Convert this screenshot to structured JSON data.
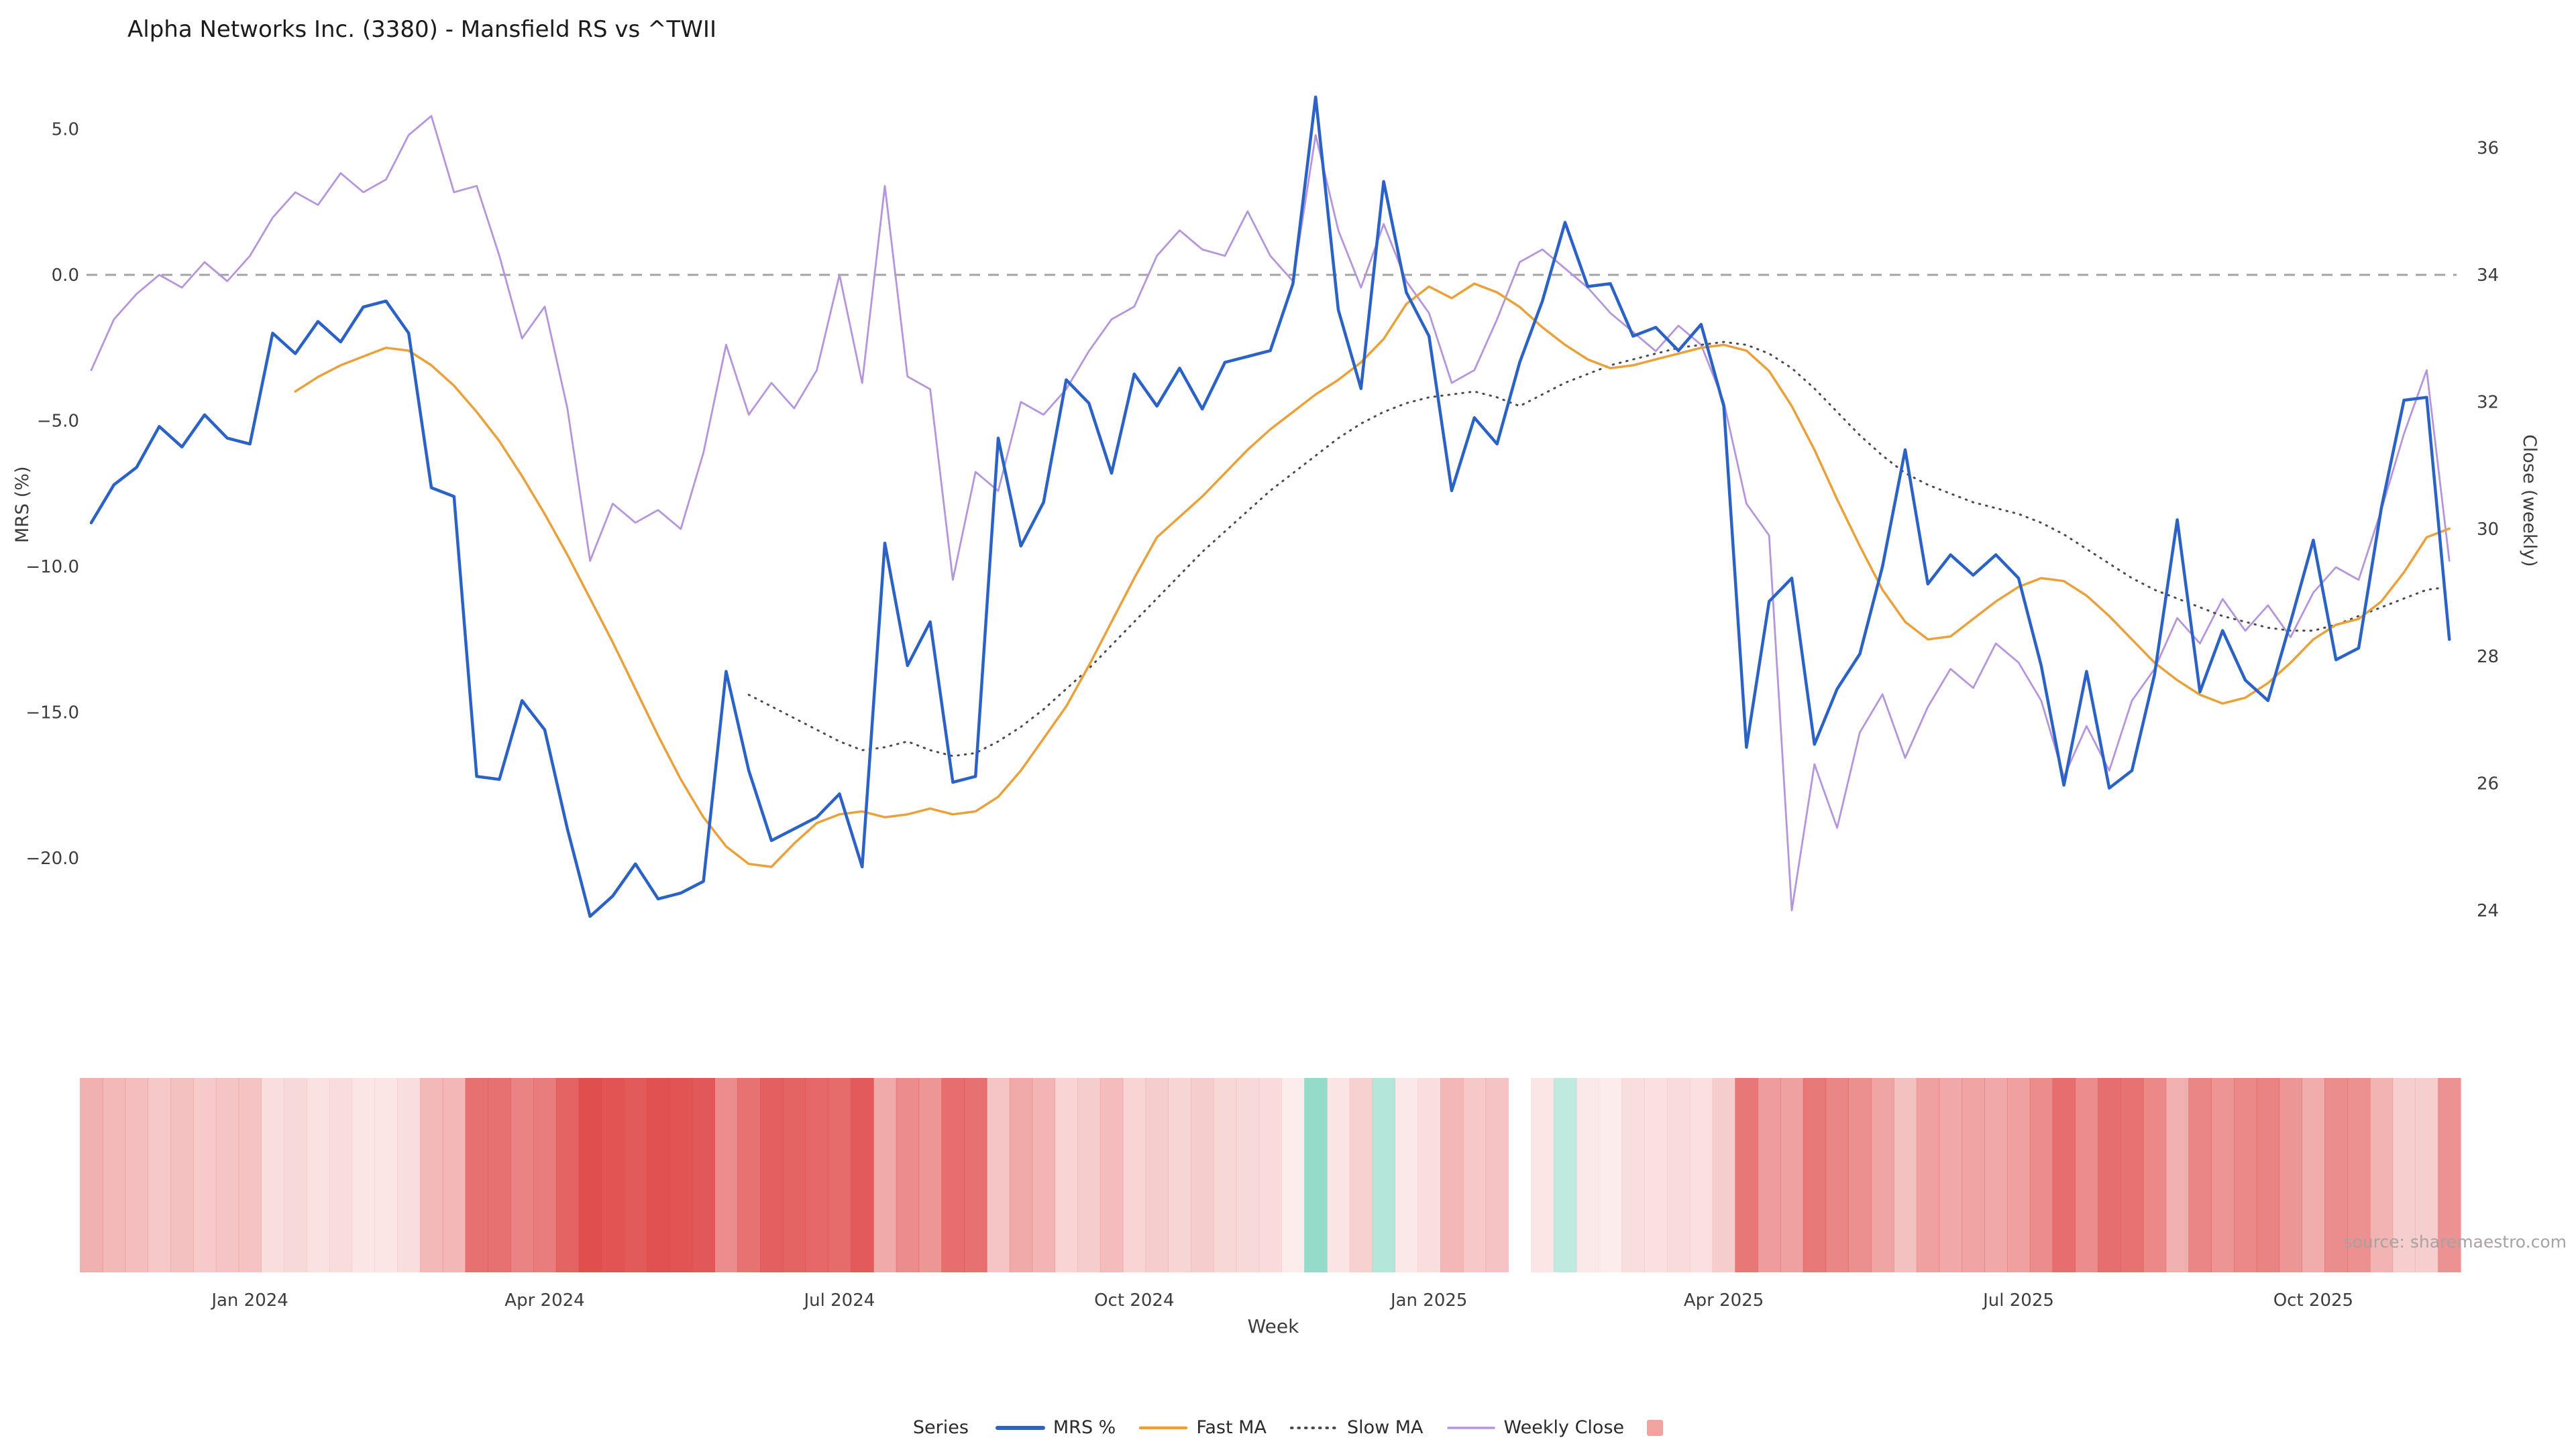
{
  "title": "Alpha Networks Inc. (3380) - Mansfield RS vs ^TWII",
  "source_note": "source: sharemaestro.com",
  "axes": {
    "left": {
      "label": "MRS (%)",
      "ticks": [
        {
          "value": 5.0,
          "label": "5.0"
        },
        {
          "value": 0.0,
          "label": "0.0"
        },
        {
          "value": -5.0,
          "label": "−5.0"
        },
        {
          "value": -10.0,
          "label": "−10.0"
        },
        {
          "value": -15.0,
          "label": "−15.0"
        },
        {
          "value": -20.0,
          "label": "−20.0"
        }
      ]
    },
    "right": {
      "label": "Close (weekly)",
      "ticks": [
        {
          "value": 36,
          "label": "36"
        },
        {
          "value": 34,
          "label": "34"
        },
        {
          "value": 32,
          "label": "32"
        },
        {
          "value": 30,
          "label": "30"
        },
        {
          "value": 28,
          "label": "28"
        },
        {
          "value": 26,
          "label": "26"
        },
        {
          "value": 24,
          "label": "24"
        }
      ]
    },
    "x": {
      "label": "Week",
      "ticks": [
        {
          "index": 7,
          "label": "Jan 2024"
        },
        {
          "index": 20,
          "label": "Apr 2024"
        },
        {
          "index": 33,
          "label": "Jul 2024"
        },
        {
          "index": 46,
          "label": "Oct 2024"
        },
        {
          "index": 59,
          "label": "Jan 2025"
        },
        {
          "index": 72,
          "label": "Apr 2025"
        },
        {
          "index": 85,
          "label": "Jul 2025"
        },
        {
          "index": 98,
          "label": "Oct 2025"
        }
      ]
    }
  },
  "legend": {
    "title": "Series",
    "items": [
      {
        "label": "MRS %",
        "swatch": "line",
        "color": "#2b62c6",
        "width": 6
      },
      {
        "label": "Fast MA",
        "swatch": "line",
        "color": "#e9a13b",
        "width": 4.5
      },
      {
        "label": "Slow MA",
        "swatch": "dotted-line",
        "color": "#4a4a4a",
        "width": 4
      },
      {
        "label": "Weekly Close",
        "swatch": "line",
        "color": "#b596dc",
        "width": 3.5
      },
      {
        "label": "",
        "swatch": "square",
        "color": "#f1a3a0"
      }
    ]
  },
  "chart_data": {
    "type": "line",
    "x_unit": "week_index",
    "n_points": 105,
    "grid": false,
    "ylim_left": [
      -23.5,
      7.0
    ],
    "ylim_right": [
      23.2,
      37.2
    ],
    "zero_line": {
      "axis": "left",
      "value": 0,
      "style": "dashed",
      "color": "#a3a3a3"
    },
    "series": [
      {
        "name": "MRS %",
        "axis": "left",
        "color": "#2b62c6",
        "style": "solid",
        "width": 4.5,
        "values": [
          -8.5,
          -7.2,
          -6.6,
          -5.2,
          -5.9,
          -4.8,
          -5.6,
          -5.8,
          -2.0,
          -2.7,
          -1.6,
          -2.3,
          -1.1,
          -0.9,
          -2.0,
          -7.3,
          -7.6,
          -17.2,
          -17.3,
          -14.6,
          -15.6,
          -19.0,
          -22.0,
          -21.3,
          -20.2,
          -21.4,
          -21.2,
          -20.8,
          -13.6,
          -17.0,
          -19.4,
          -19.0,
          -18.6,
          -17.8,
          -20.3,
          -9.2,
          -13.4,
          -11.9,
          -17.4,
          -17.2,
          -5.6,
          -9.3,
          -7.8,
          -3.6,
          -4.4,
          -6.8,
          -3.4,
          -4.5,
          -3.2,
          -4.6,
          -3.0,
          -2.8,
          -2.6,
          -0.3,
          6.1,
          -1.2,
          -3.9,
          3.2,
          -0.6,
          -2.1,
          -7.4,
          -4.9,
          -5.8,
          -3.0,
          -0.9,
          1.8,
          -0.4,
          -0.3,
          -2.1,
          -1.8,
          -2.6,
          -1.7,
          -4.5,
          -16.2,
          -11.2,
          -10.4,
          -16.1,
          -14.2,
          -13.0,
          -10.0,
          -6.0,
          -10.6,
          -9.6,
          -10.3,
          -9.6,
          -10.4,
          -13.4,
          -17.5,
          -13.6,
          -17.6,
          -17.0,
          -13.7,
          -8.4,
          -14.3,
          -12.2,
          -13.9,
          -14.6,
          -11.9,
          -9.1,
          -13.2,
          -12.8,
          -8.0,
          -4.3,
          -4.2,
          -12.5
        ]
      },
      {
        "name": "Fast MA",
        "axis": "left",
        "color": "#e9a13b",
        "style": "solid",
        "width": 3.5,
        "values": [
          null,
          null,
          null,
          null,
          null,
          null,
          null,
          null,
          null,
          -4.0,
          -3.5,
          -3.1,
          -2.8,
          -2.5,
          -2.6,
          -3.1,
          -3.8,
          -4.7,
          -5.7,
          -6.9,
          -8.2,
          -9.6,
          -11.1,
          -12.6,
          -14.2,
          -15.8,
          -17.3,
          -18.6,
          -19.6,
          -20.2,
          -20.3,
          -19.5,
          -18.8,
          -18.5,
          -18.4,
          -18.6,
          -18.5,
          -18.3,
          -18.5,
          -18.4,
          -17.9,
          -17.0,
          -15.9,
          -14.8,
          -13.4,
          -11.9,
          -10.4,
          -9.0,
          -8.3,
          -7.6,
          -6.8,
          -6.0,
          -5.3,
          -4.7,
          -4.1,
          -3.6,
          -3.0,
          -2.2,
          -1.0,
          -0.4,
          -0.8,
          -0.3,
          -0.6,
          -1.1,
          -1.8,
          -2.4,
          -2.9,
          -3.2,
          -3.1,
          -2.9,
          -2.7,
          -2.5,
          -2.4,
          -2.6,
          -3.3,
          -4.5,
          -6.0,
          -7.7,
          -9.3,
          -10.8,
          -11.9,
          -12.5,
          -12.4,
          -11.8,
          -11.2,
          -10.7,
          -10.4,
          -10.5,
          -11.0,
          -11.7,
          -12.5,
          -13.3,
          -13.9,
          -14.4,
          -14.7,
          -14.5,
          -14.0,
          -13.3,
          -12.5,
          -12.0,
          -11.8,
          -11.2,
          -10.2,
          -9.0,
          -8.7
        ]
      },
      {
        "name": "Slow MA",
        "axis": "left",
        "color": "#4a4a4a",
        "style": "dotted",
        "width": 3,
        "values": [
          null,
          null,
          null,
          null,
          null,
          null,
          null,
          null,
          null,
          null,
          null,
          null,
          null,
          null,
          null,
          null,
          null,
          null,
          null,
          null,
          null,
          null,
          null,
          null,
          null,
          null,
          null,
          null,
          null,
          -14.4,
          -14.8,
          -15.2,
          -15.6,
          -16.0,
          -16.3,
          -16.2,
          -16.0,
          -16.3,
          -16.5,
          -16.4,
          -16.0,
          -15.5,
          -14.9,
          -14.2,
          -13.5,
          -12.7,
          -11.9,
          -11.1,
          -10.3,
          -9.5,
          -8.8,
          -8.1,
          -7.4,
          -6.8,
          -6.2,
          -5.6,
          -5.1,
          -4.7,
          -4.4,
          -4.2,
          -4.1,
          -4.0,
          -4.2,
          -4.5,
          -4.1,
          -3.7,
          -3.4,
          -3.1,
          -2.9,
          -2.7,
          -2.5,
          -2.4,
          -2.3,
          -2.4,
          -2.7,
          -3.2,
          -3.9,
          -4.7,
          -5.5,
          -6.2,
          -6.8,
          -7.2,
          -7.5,
          -7.8,
          -8.0,
          -8.2,
          -8.5,
          -8.9,
          -9.4,
          -9.9,
          -10.4,
          -10.8,
          -11.1,
          -11.4,
          -11.7,
          -11.9,
          -12.1,
          -12.2,
          -12.2,
          -12.0,
          -11.7,
          -11.4,
          -11.1,
          -10.8,
          -10.7
        ]
      },
      {
        "name": "Weekly Close",
        "axis": "right",
        "color": "#b596dc",
        "style": "solid",
        "width": 2.8,
        "values": [
          32.5,
          33.3,
          33.7,
          34.0,
          33.8,
          34.2,
          33.9,
          34.3,
          34.9,
          35.3,
          35.1,
          35.6,
          35.3,
          35.5,
          36.2,
          36.5,
          35.3,
          35.4,
          34.3,
          33.0,
          33.5,
          31.9,
          29.5,
          30.4,
          30.1,
          30.3,
          30.0,
          31.2,
          32.9,
          31.8,
          32.3,
          31.9,
          32.5,
          34.0,
          32.3,
          35.4,
          32.4,
          32.2,
          29.2,
          30.9,
          30.6,
          32.0,
          31.8,
          32.2,
          32.8,
          33.3,
          33.5,
          34.3,
          34.7,
          34.4,
          34.3,
          35.0,
          34.3,
          33.9,
          36.2,
          34.7,
          33.8,
          34.8,
          33.9,
          33.4,
          32.3,
          32.5,
          33.3,
          34.2,
          34.4,
          34.1,
          33.8,
          33.4,
          33.1,
          32.8,
          33.2,
          32.9,
          32.0,
          30.4,
          29.9,
          24.0,
          26.3,
          25.3,
          26.8,
          27.4,
          26.4,
          27.2,
          27.8,
          27.5,
          28.2,
          27.9,
          27.3,
          26.1,
          26.9,
          26.2,
          27.3,
          27.8,
          28.6,
          28.2,
          28.9,
          28.4,
          28.8,
          28.3,
          29.0,
          29.4,
          29.2,
          30.3,
          31.5,
          32.5,
          29.5
        ]
      }
    ],
    "heatmap": {
      "description": "weekly strip colored by MRS % value: red intensity for negative, mint green for positive",
      "values_from": "MRS %",
      "negative_color": "#e04a4a",
      "positive_color": "#6ecdb5",
      "gap_indices": [
        63
      ]
    }
  }
}
